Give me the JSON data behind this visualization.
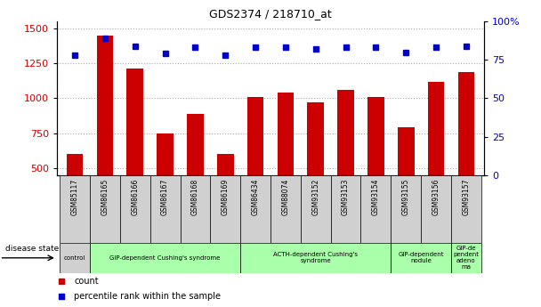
{
  "title": "GDS2374 / 218710_at",
  "samples": [
    "GSM85117",
    "GSM86165",
    "GSM86166",
    "GSM86167",
    "GSM86168",
    "GSM86169",
    "GSM86434",
    "GSM88074",
    "GSM93152",
    "GSM93153",
    "GSM93154",
    "GSM93155",
    "GSM93156",
    "GSM93157"
  ],
  "counts": [
    600,
    1450,
    1215,
    745,
    890,
    600,
    1010,
    1040,
    970,
    1060,
    1010,
    790,
    1120,
    1185
  ],
  "percentiles": [
    78,
    89,
    84,
    79,
    83,
    78,
    83,
    83,
    82,
    83,
    83,
    80,
    83,
    84
  ],
  "groups": [
    {
      "label": "control",
      "start": 0,
      "end": 0,
      "color": "#d0d0d0"
    },
    {
      "label": "GIP-dependent Cushing's syndrome",
      "start": 1,
      "end": 5,
      "color": "#aaffaa"
    },
    {
      "label": "ACTH-dependent Cushing's\nsyndrome",
      "start": 6,
      "end": 10,
      "color": "#aaffaa"
    },
    {
      "label": "GIP-dependent\nnodule",
      "start": 11,
      "end": 12,
      "color": "#aaffaa"
    },
    {
      "label": "GIP-de\npendent\nadeno\nma",
      "start": 13,
      "end": 13,
      "color": "#aaffaa"
    }
  ],
  "bar_color": "#cc0000",
  "dot_color": "#0000cc",
  "ylim_left": [
    450,
    1550
  ],
  "ylim_right": [
    0,
    100
  ],
  "yticks_left": [
    500,
    750,
    1000,
    1250,
    1500
  ],
  "yticks_right": [
    0,
    25,
    50,
    75,
    100
  ],
  "background_color": "#ffffff",
  "grid_color": "#aaaaaa",
  "tick_bg_color": "#d0d0d0"
}
